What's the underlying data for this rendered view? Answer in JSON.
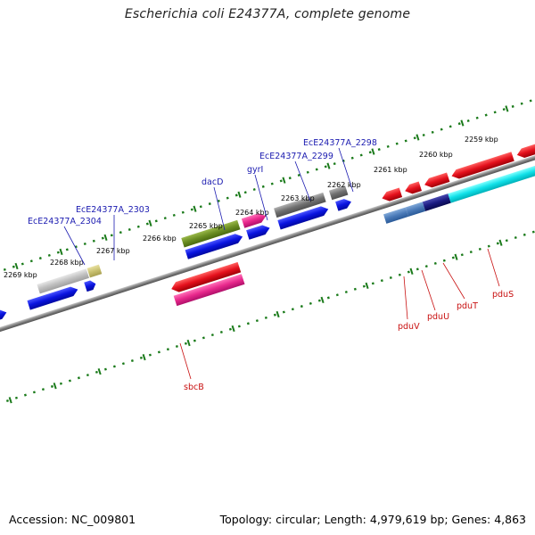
{
  "title": "Escherichia coli E24377A, complete genome",
  "footer": {
    "accession": "Accession: NC_009801",
    "summary": "Topology: circular; Length: 4,979,619 bp; Genes: 4,863"
  },
  "scale_labels": [
    "2269 kbp",
    "2268 kbp",
    "2267 kbp",
    "2266 kbp",
    "2265 kbp",
    "2264 kbp",
    "2263 kbp",
    "2262 kbp",
    "2261 kbp",
    "2260 kbp",
    "2259 kbp"
  ],
  "gene_labels": {
    "ece2304": "EcE24377A_2304",
    "ece2303": "EcE24377A_2303",
    "dacD": "dacD",
    "gyrI": "gyrI",
    "ece2299": "EcE24377A_2299",
    "ece2298": "EcE24377A_2298",
    "sbcB": "sbcB",
    "pduV": "pduV",
    "pduU": "pduU",
    "pduT": "pduT",
    "pduS": "pduS"
  },
  "colors": {
    "blue": "#0a14e0",
    "red": "#e4101c",
    "gray": "#808080",
    "silver": "#c0c0c0",
    "khaki": "#c8c070",
    "olive": "#6b8e23",
    "magenta": "#e8288c",
    "steelblue": "#4a7ab8",
    "navy": "#1a1a80",
    "cyan": "#10e0e8",
    "tick_green": "#1a7a1a",
    "label_blue": "#1a1ab0",
    "label_red": "#c81010"
  }
}
